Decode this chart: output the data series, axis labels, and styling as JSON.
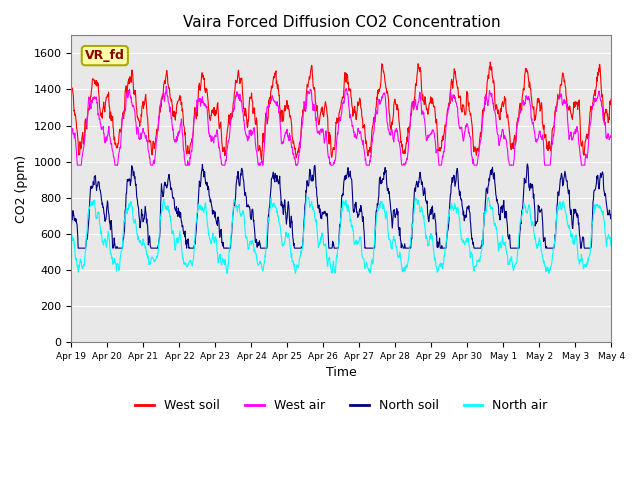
{
  "title": "Vaira Forced Diffusion CO2 Concentration",
  "xlabel": "Time",
  "ylabel": "CO2 (ppm)",
  "ylim": [
    0,
    1700
  ],
  "yticks": [
    0,
    200,
    400,
    600,
    800,
    1000,
    1200,
    1400,
    1600
  ],
  "xtick_labels": [
    "Apr 19",
    "Apr 20",
    "Apr 21",
    "Apr 22",
    "Apr 23",
    "Apr 24",
    "Apr 25",
    "Apr 26",
    "Apr 27",
    "Apr 28",
    "Apr 29",
    "Apr 30",
    "May 1",
    "May 2",
    "May 3",
    "May 4"
  ],
  "legend_entries": [
    "West soil",
    "West air",
    "North soil",
    "North air"
  ],
  "line_colors": [
    "red",
    "magenta",
    "navy",
    "cyan"
  ],
  "label_box_text": "VR_fd",
  "label_box_color": "#ffffaa",
  "label_box_edge_color": "#aaaa00",
  "background_color": "#e8e8e8",
  "n_points": 1440,
  "period_hours": 24.0
}
